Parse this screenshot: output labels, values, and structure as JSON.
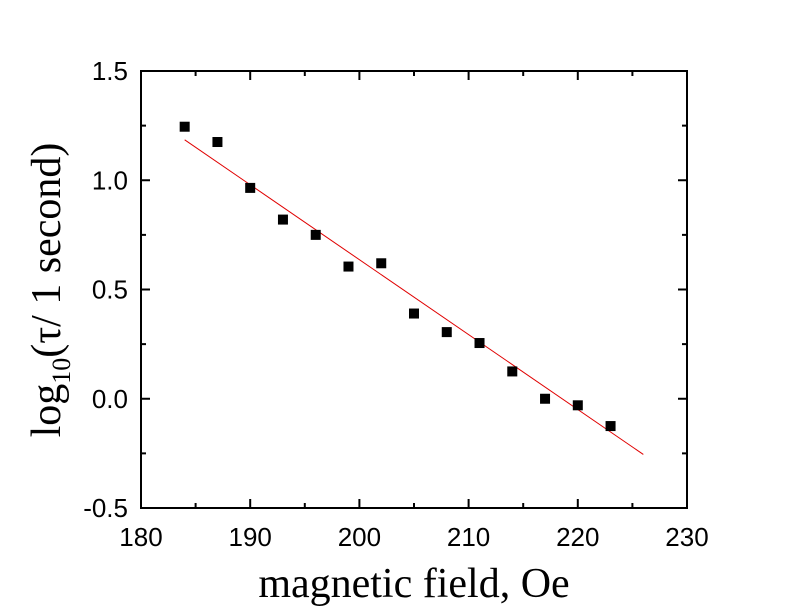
{
  "chart_data": {
    "type": "scatter",
    "xlabel": "magnetic field, Oe",
    "ylabel": {
      "prefix": "log",
      "subscript": "10",
      "suffix": "(τ/ 1 second)"
    },
    "xlim": [
      180,
      230
    ],
    "ylim": [
      -0.5,
      1.5
    ],
    "x_ticks": [
      "180",
      "190",
      "200",
      "210",
      "220",
      "230"
    ],
    "y_ticks": [
      "-0.5",
      "0.0",
      "0.5",
      "1.0",
      "1.5"
    ],
    "grid": false,
    "legend": "none",
    "series": [
      {
        "marker": "square",
        "color": "#000000",
        "x": [
          184,
          187,
          190,
          193,
          196,
          199,
          202,
          205,
          208,
          211,
          214,
          217,
          220,
          223
        ],
        "y": [
          1.245,
          1.175,
          0.965,
          0.82,
          0.75,
          0.605,
          0.62,
          0.39,
          0.305,
          0.255,
          0.125,
          0.0,
          -0.03,
          -0.125
        ]
      }
    ],
    "fit_line": {
      "color": "#e00000",
      "x": [
        184,
        226
      ],
      "y": [
        1.185,
        -0.255
      ]
    }
  }
}
